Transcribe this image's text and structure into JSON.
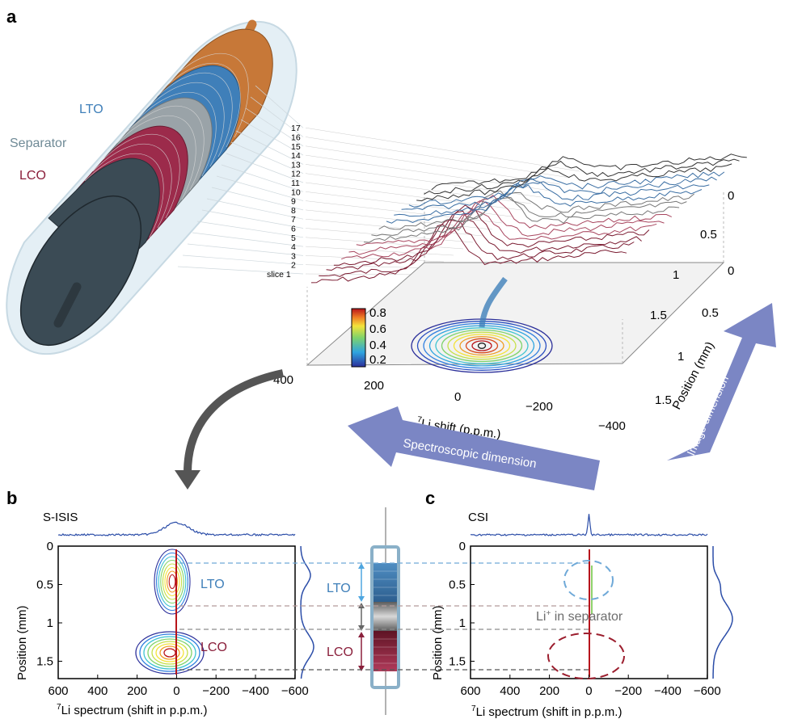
{
  "panels": {
    "a": "a",
    "b": "b",
    "c": "c"
  },
  "battery": {
    "labels": {
      "lto": "LTO",
      "separator": "Separator",
      "lco": "LCO"
    },
    "colors": {
      "lto": "#3f7fb9",
      "separator": "#9aa3a8",
      "lco": "#9c2b4b",
      "cap": "#3b4b55",
      "copper": "#c77838"
    }
  },
  "panel_a": {
    "slice_labels": [
      "slice 1",
      "2",
      "3",
      "4",
      "5",
      "6",
      "7",
      "8",
      "9",
      "10",
      "11",
      "12",
      "13",
      "14",
      "15",
      "16",
      "17"
    ],
    "colorbar": {
      "ticks": [
        "0.8",
        "0.6",
        "0.4",
        "0.2"
      ]
    },
    "shift_ticks": [
      "400",
      "200",
      "0",
      "−200",
      "−400"
    ],
    "shift_label_pre": "7",
    "shift_label": "Li shift (p.p.m.)",
    "front_pos_ticks": [
      "0",
      "0.5",
      "1",
      "1.5"
    ],
    "back_pos_ticks": [
      "0",
      "0.5",
      "1",
      "1.5"
    ],
    "position_label": "Position (mm)",
    "arrow_spectroscopic": "Spectroscopic dimension",
    "arrow_image": "Image dimension",
    "arrow_color": "#7b86c4"
  },
  "panel_b": {
    "title": "S-ISIS",
    "x_ticks": [
      "600",
      "400",
      "200",
      "0",
      "−200",
      "−400",
      "−600"
    ],
    "y_ticks": [
      "0",
      "0.5",
      "1",
      "1.5"
    ],
    "xlabel_pre": "7",
    "xlabel": "Li spectrum (shift in p.p.m.)",
    "ylabel": "Position (mm)",
    "lto": "LTO",
    "lco": "LCO"
  },
  "panel_c": {
    "title": "CSI",
    "x_ticks": [
      "600",
      "400",
      "200",
      "0",
      "−200",
      "−400",
      "−600"
    ],
    "y_ticks": [
      "0",
      "0.5",
      "1",
      "1.5"
    ],
    "xlabel_pre": "7",
    "xlabel": "Li spectrum (shift in p.p.m.)",
    "ylabel": "Position (mm)",
    "separator_pre": "Li",
    "separator_sup": "+",
    "separator_post": " in separator"
  },
  "center_cell": {
    "lto": "LTO",
    "lco": "LCO"
  }
}
